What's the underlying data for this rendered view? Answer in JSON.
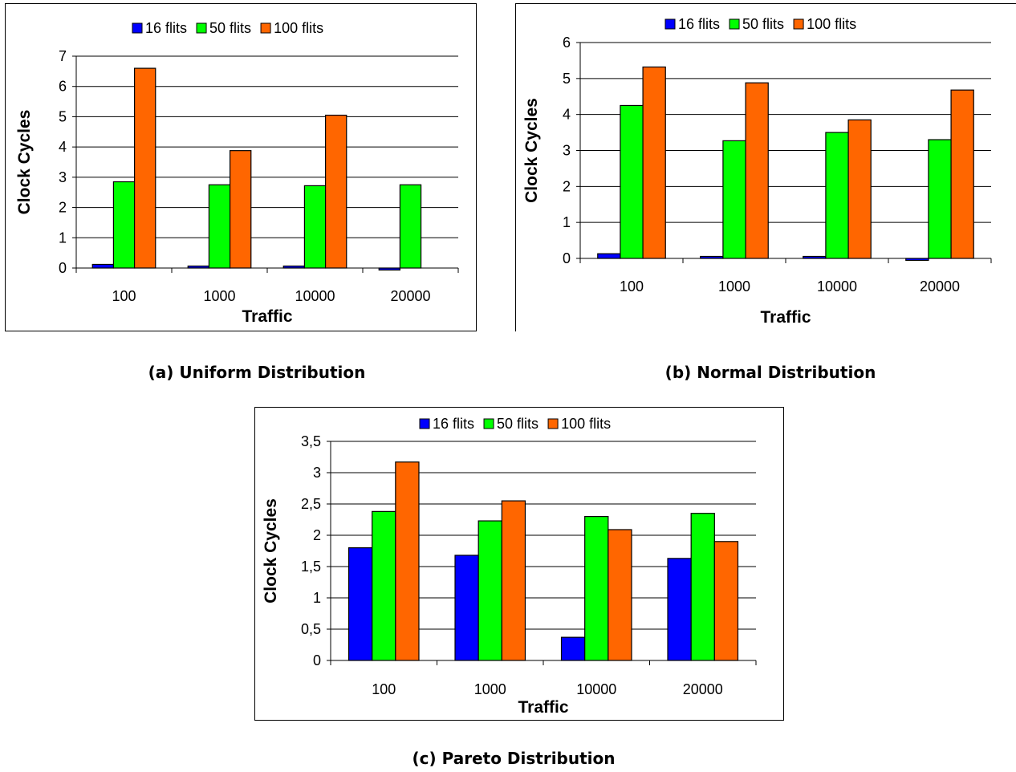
{
  "chart_data": [
    {
      "type": "bar",
      "categories": [
        "100",
        "1000",
        "10000",
        "20000"
      ],
      "series": [
        {
          "name": "16 flits",
          "values": [
            0.12,
            0.03,
            0.03,
            -0.03
          ]
        },
        {
          "name": "50 flits",
          "values": [
            2.85,
            2.75,
            2.72,
            2.75
          ]
        },
        {
          "name": "100 flits",
          "values": [
            6.6,
            3.88,
            5.05,
            0
          ]
        }
      ],
      "xlabel": "Traffic",
      "ylabel": "Clock Cycles",
      "ylim": [
        0,
        7
      ],
      "yticks": [
        "0",
        "1",
        "2",
        "3",
        "4",
        "5",
        "6",
        "7"
      ],
      "grid": true,
      "legend": "top"
    },
    {
      "type": "bar",
      "categories": [
        "100",
        "1000",
        "10000",
        "20000"
      ],
      "series": [
        {
          "name": "16 flits",
          "values": [
            0.13,
            0.03,
            0.03,
            -0.05
          ]
        },
        {
          "name": "50 flits",
          "values": [
            4.25,
            3.27,
            3.5,
            3.3
          ]
        },
        {
          "name": "100 flits",
          "values": [
            5.32,
            4.88,
            3.85,
            4.68
          ]
        }
      ],
      "xlabel": "Traffic",
      "ylabel": "Clock Cycles",
      "ylim": [
        0,
        6
      ],
      "yticks": [
        "0",
        "1",
        "2",
        "3",
        "4",
        "5",
        "6"
      ],
      "grid": true,
      "legend": "top"
    },
    {
      "type": "bar",
      "categories": [
        "100",
        "1000",
        "10000",
        "20000"
      ],
      "series": [
        {
          "name": "16 flits",
          "values": [
            1.8,
            1.68,
            0.37,
            1.63
          ]
        },
        {
          "name": "50 flits",
          "values": [
            2.38,
            2.23,
            2.3,
            2.35
          ]
        },
        {
          "name": "100 flits",
          "values": [
            3.17,
            2.55,
            2.09,
            1.9
          ]
        }
      ],
      "xlabel": "Traffic",
      "ylabel": "Clock Cycles",
      "ylim": [
        0,
        3.5
      ],
      "yticks": [
        "0",
        "0,5",
        "1",
        "1,5",
        "2",
        "2,5",
        "3",
        "3,5"
      ],
      "grid": true,
      "legend": "top"
    }
  ],
  "colors": {
    "16 flits": "#0000ff",
    "50 flits": "#00ff00",
    "100 flits": "#ff6600"
  },
  "captions": {
    "a": "(a) Uniform Distribution",
    "b": "(b) Normal Distribution",
    "c": "(c) Pareto Distribution"
  }
}
